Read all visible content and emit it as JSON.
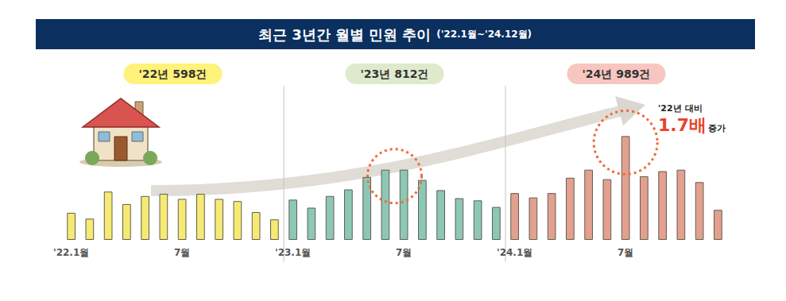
{
  "chart_data": {
    "type": "bar",
    "title": "최근 3년간 월별 민원 추이",
    "subtitle": "('22.1월~'24.12월)",
    "categories": [
      "'22.1월",
      null,
      null,
      null,
      null,
      null,
      "7월",
      null,
      null,
      null,
      null,
      null,
      "'23.1월",
      null,
      null,
      null,
      null,
      null,
      "7월",
      null,
      null,
      null,
      null,
      null,
      "'24.1월",
      null,
      null,
      null,
      null,
      null,
      "7월",
      null,
      null,
      null,
      null,
      null
    ],
    "values": [
      37,
      29,
      66,
      49,
      60,
      63,
      56,
      63,
      56,
      53,
      38,
      28,
      55,
      44,
      60,
      69,
      86,
      96,
      96,
      82,
      68,
      57,
      54,
      45,
      64,
      58,
      64,
      85,
      96,
      83,
      142,
      87,
      94,
      96,
      79,
      41
    ],
    "colors": [
      "#f6ea73",
      "#f6ea73",
      "#f6ea73",
      "#f6ea73",
      "#f6ea73",
      "#f6ea73",
      "#f6ea73",
      "#f6ea73",
      "#f6ea73",
      "#f6ea73",
      "#f6ea73",
      "#f6ea73",
      "#8dc7b5",
      "#8dc7b5",
      "#8dc7b5",
      "#8dc7b5",
      "#8dc7b5",
      "#8dc7b5",
      "#8dc7b5",
      "#8dc7b5",
      "#8dc7b5",
      "#8dc7b5",
      "#8dc7b5",
      "#8dc7b5",
      "#e3a08e",
      "#e3a08e",
      "#e3a08e",
      "#e3a08e",
      "#e3a08e",
      "#e3a08e",
      "#e3a08e",
      "#e3a08e",
      "#e3a08e",
      "#e3a08e",
      "#e3a08e",
      "#e3a08e"
    ],
    "ylim": [
      0,
      200
    ],
    "grid": false,
    "tick_labels": "x",
    "year_labels": [
      {
        "text": "'22년 598건",
        "color": "#fff27a"
      },
      {
        "text": "'23년 812건",
        "color": "#dfeacd"
      },
      {
        "text": "'24년 989건",
        "color": "#f7c6c0"
      }
    ],
    "annotation": {
      "prefix": "'22년 대비",
      "highlight": "1.7배",
      "suffix": "증가"
    }
  }
}
